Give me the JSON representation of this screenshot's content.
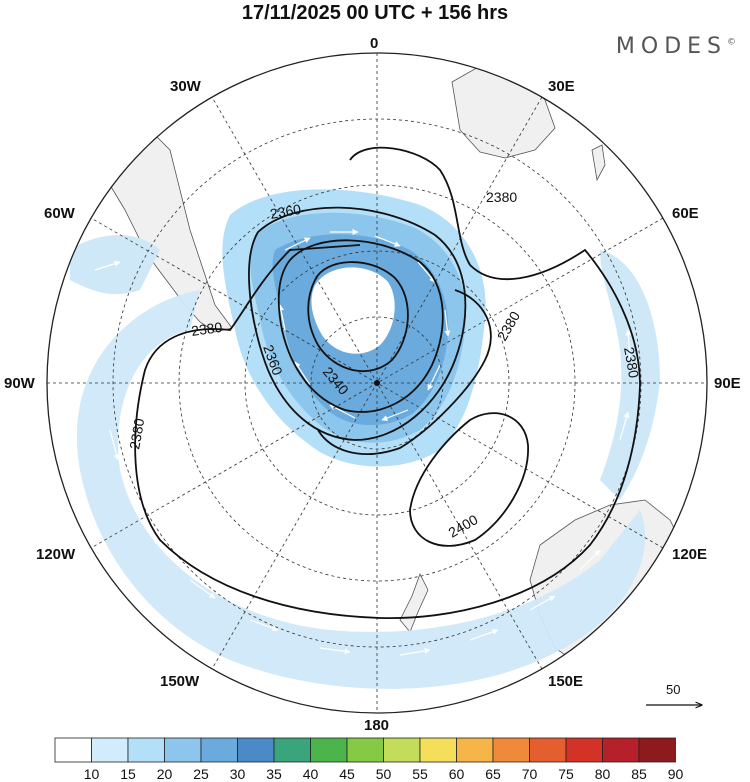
{
  "title": "17/11/2025  00 UTC  + 156 hrs",
  "brand": "MODES",
  "brand_mark": "©",
  "longitude_labels": {
    "n0": "0",
    "n30e": "30E",
    "n60e": "60E",
    "n90e": "90E",
    "n120e": "120E",
    "n150e": "150E",
    "n180": "180",
    "n150w": "150W",
    "n120w": "120W",
    "n90w": "90W",
    "n60w": "60W",
    "n30w": "30W"
  },
  "contour_labels": {
    "c2360a": "2360",
    "c2360b": "2360",
    "c2340": "2340",
    "c2380a": "2380",
    "c2380b": "2380",
    "c2380c": "2380",
    "c2380d": "2380",
    "c2380e": "2380",
    "c2400": "2400"
  },
  "reference_vector": "50",
  "colorbar": {
    "labels": [
      "10",
      "15",
      "20",
      "25",
      "30",
      "35",
      "40",
      "45",
      "50",
      "55",
      "60",
      "65",
      "70",
      "75",
      "80",
      "85",
      "90"
    ],
    "colors": [
      "#ffffff",
      "#d2ecfb",
      "#b4dff8",
      "#8dc6ec",
      "#6aaadc",
      "#4b8ac6",
      "#3aa57c",
      "#4bb54b",
      "#86c944",
      "#c3dd5a",
      "#f5df5a",
      "#f5b548",
      "#f08a3a",
      "#e55e30",
      "#d33227",
      "#b5202a",
      "#8f1a1e"
    ]
  },
  "colors": {
    "land": "#f0f0f0",
    "coast": "#555555",
    "contour": "#111111",
    "grid": "#333333",
    "wind_light": "#cfe8f8",
    "wind_mid": "#a9d4f2",
    "wind_strong": "#6aaadc"
  }
}
